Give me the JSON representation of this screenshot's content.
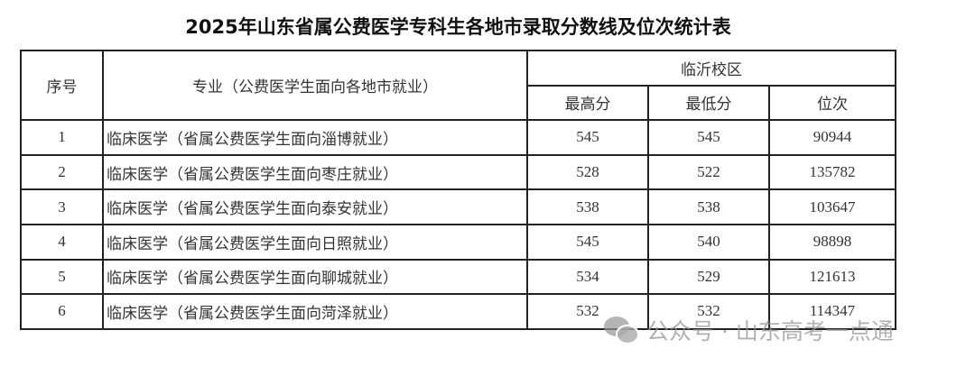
{
  "title": "2025年山东省属公费医学专科生各地市录取分数线及位次统计表",
  "headers": {
    "index": "序号",
    "major": "专业（公费医学生面向各地市就业）",
    "campus": "临沂校区",
    "max": "最高分",
    "min": "最低分",
    "rank": "位次"
  },
  "rows": [
    {
      "index": "1",
      "major": "临床医学（省属公费医学生面向淄博就业）",
      "max": "545",
      "min": "545",
      "rank": "90944"
    },
    {
      "index": "2",
      "major": "临床医学（省属公费医学生面向枣庄就业）",
      "max": "528",
      "min": "522",
      "rank": "135782"
    },
    {
      "index": "3",
      "major": "临床医学（省属公费医学生面向泰安就业）",
      "max": "538",
      "min": "538",
      "rank": "103647"
    },
    {
      "index": "4",
      "major": "临床医学（省属公费医学生面向日照就业）",
      "max": "545",
      "min": "540",
      "rank": "98898"
    },
    {
      "index": "5",
      "major": "临床医学（省属公费医学生面向聊城就业）",
      "max": "534",
      "min": "529",
      "rank": "121613"
    },
    {
      "index": "6",
      "major": "临床医学（省属公费医学生面向菏泽就业）",
      "max": "532",
      "min": "532",
      "rank": "114347"
    }
  ],
  "watermark": {
    "text": "公众号 · 山东高考一点通",
    "icon": "wechat-icon"
  }
}
